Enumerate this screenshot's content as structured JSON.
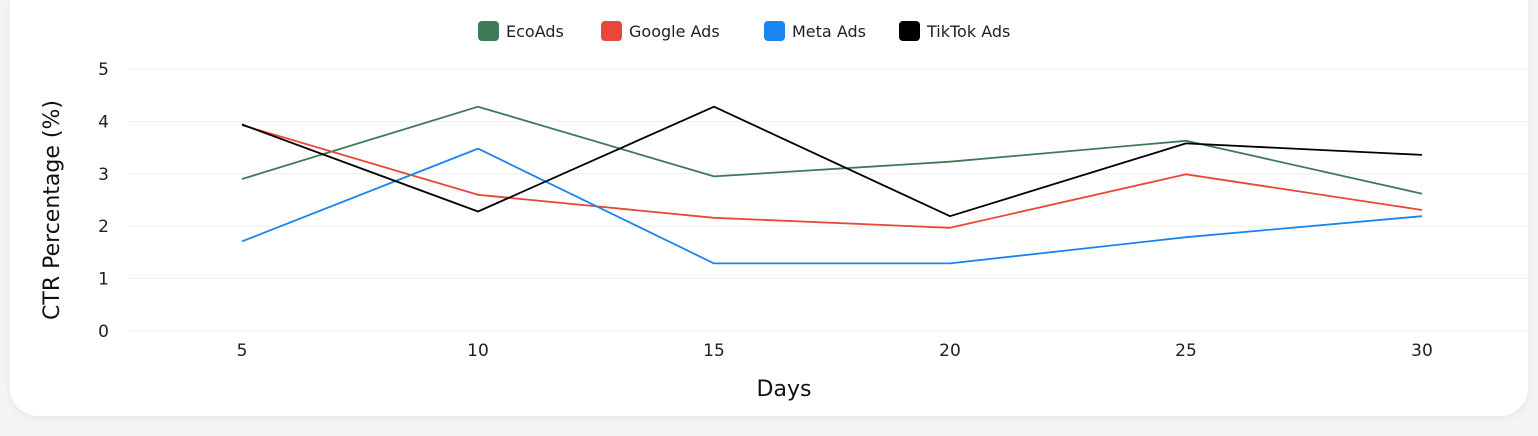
{
  "chart_data": {
    "type": "line",
    "xlabel": "Days",
    "ylabel": "CTR Percentage (%)",
    "x": [
      5,
      10,
      15,
      20,
      25,
      30
    ],
    "ylim": [
      0,
      5
    ],
    "yticks": [
      0,
      1,
      2,
      3,
      4,
      5
    ],
    "grid": true,
    "legend_position": "top-center",
    "series": [
      {
        "name": "EcoAds",
        "color": "#3f7a56",
        "values": [
          2.9,
          4.28,
          2.95,
          3.23,
          3.63,
          2.62
        ]
      },
      {
        "name": "Google Ads",
        "color": "#e8473a",
        "values": [
          3.93,
          2.6,
          2.16,
          1.97,
          2.99,
          2.31
        ]
      },
      {
        "name": "Meta Ads",
        "color": "#1a85f0",
        "values": [
          1.71,
          3.48,
          1.29,
          1.29,
          1.79,
          2.19
        ]
      },
      {
        "name": "TikTok Ads",
        "color": "#000000",
        "values": [
          3.94,
          2.28,
          4.28,
          2.19,
          3.58,
          3.36
        ]
      }
    ]
  }
}
